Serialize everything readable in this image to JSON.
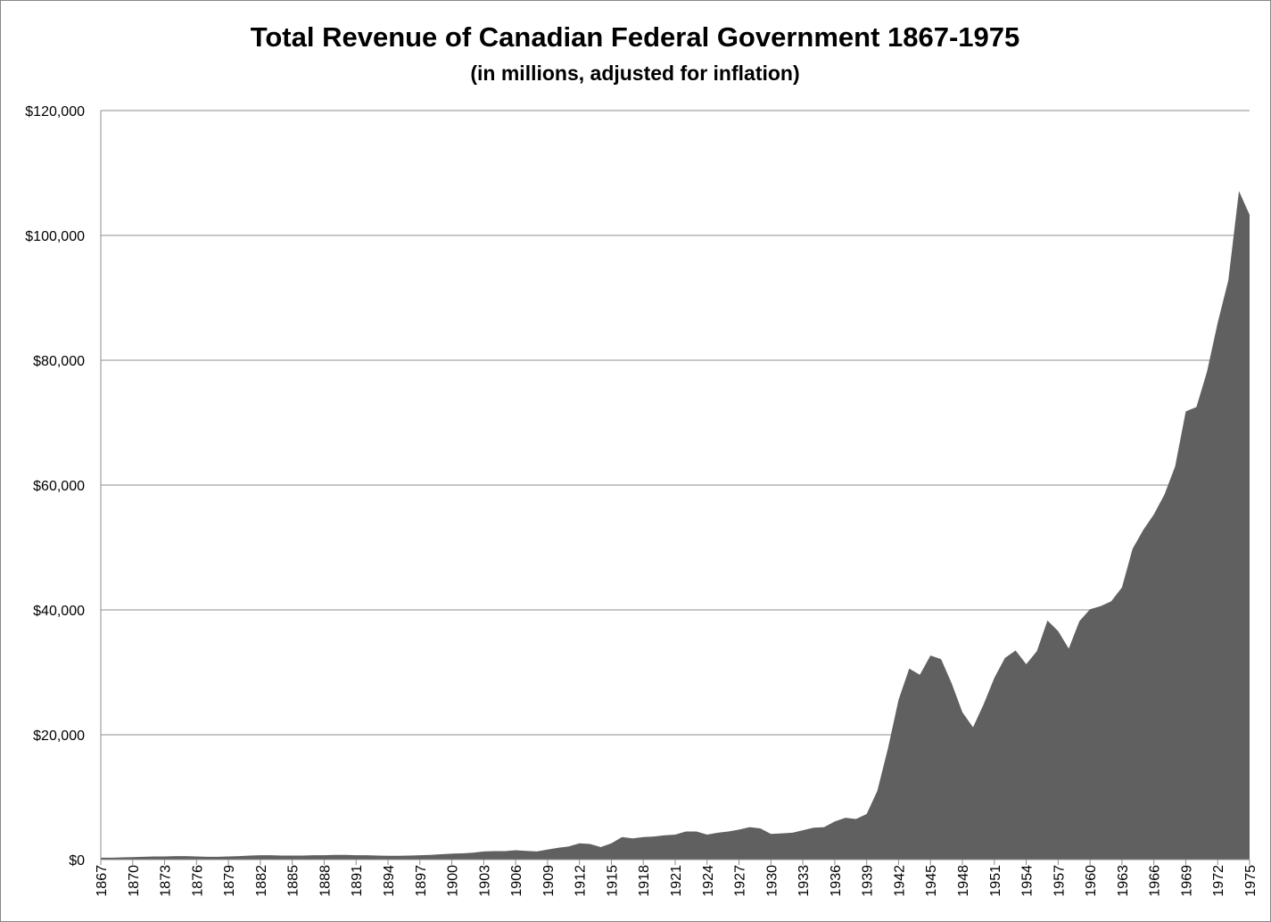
{
  "chart_data": {
    "type": "area",
    "title": "Total Revenue of Canadian Federal Government 1867-1975",
    "subtitle": "(in millions, adjusted for inflation)",
    "color": "#606060",
    "grid": true,
    "x": [
      1867,
      1868,
      1869,
      1870,
      1871,
      1872,
      1873,
      1874,
      1875,
      1876,
      1877,
      1878,
      1879,
      1880,
      1881,
      1882,
      1883,
      1884,
      1885,
      1886,
      1887,
      1888,
      1889,
      1890,
      1891,
      1892,
      1893,
      1894,
      1895,
      1896,
      1897,
      1898,
      1899,
      1900,
      1901,
      1902,
      1903,
      1904,
      1905,
      1906,
      1907,
      1908,
      1909,
      1910,
      1911,
      1912,
      1913,
      1914,
      1915,
      1916,
      1917,
      1918,
      1919,
      1920,
      1921,
      1922,
      1923,
      1924,
      1925,
      1926,
      1927,
      1928,
      1929,
      1930,
      1931,
      1932,
      1933,
      1934,
      1935,
      1936,
      1937,
      1938,
      1939,
      1940,
      1941,
      1942,
      1943,
      1944,
      1945,
      1946,
      1947,
      1948,
      1949,
      1950,
      1951,
      1952,
      1953,
      1954,
      1955,
      1956,
      1957,
      1958,
      1959,
      1960,
      1961,
      1962,
      1963,
      1964,
      1965,
      1966,
      1967,
      1968,
      1969,
      1970,
      1971,
      1972,
      1973,
      1974,
      1975
    ],
    "values": [
      300,
      300,
      350,
      400,
      450,
      500,
      500,
      550,
      550,
      500,
      450,
      450,
      500,
      550,
      650,
      700,
      700,
      650,
      650,
      650,
      700,
      700,
      750,
      750,
      700,
      700,
      650,
      600,
      600,
      650,
      700,
      750,
      850,
      950,
      1000,
      1100,
      1300,
      1350,
      1350,
      1500,
      1400,
      1300,
      1600,
      1900,
      2100,
      2600,
      2500,
      2000,
      2600,
      3600,
      3400,
      3600,
      3700,
      3900,
      4000,
      4500,
      4500,
      4000,
      4300,
      4500,
      4800,
      5200,
      5000,
      4100,
      4200,
      4300,
      4700,
      5100,
      5200,
      6100,
      6700,
      6500,
      7300,
      11000,
      17800,
      25600,
      30600,
      29600,
      32700,
      32100,
      28200,
      23600,
      21200,
      24900,
      29100,
      32300,
      33500,
      31300,
      33400,
      38300,
      36600,
      33800,
      38200,
      40100,
      40600,
      41400,
      43600,
      49800,
      52800,
      55300,
      58500,
      63000,
      71800,
      72500,
      78200,
      86000,
      92800,
      107100,
      103300
    ],
    "xlim": [
      1867,
      1975
    ],
    "xticks": [
      1867,
      1870,
      1873,
      1876,
      1879,
      1882,
      1885,
      1888,
      1891,
      1894,
      1897,
      1900,
      1903,
      1906,
      1909,
      1912,
      1915,
      1918,
      1921,
      1924,
      1927,
      1930,
      1933,
      1936,
      1939,
      1942,
      1945,
      1948,
      1951,
      1954,
      1957,
      1960,
      1963,
      1966,
      1969,
      1972,
      1975
    ],
    "ylim": [
      0,
      120000
    ],
    "yticks": [
      {
        "value": 0,
        "label": "$0"
      },
      {
        "value": 20000,
        "label": "$20,000"
      },
      {
        "value": 40000,
        "label": "$40,000"
      },
      {
        "value": 60000,
        "label": "$60,000"
      },
      {
        "value": 80000,
        "label": "$80,000"
      },
      {
        "value": 100000,
        "label": "$100,000"
      },
      {
        "value": 120000,
        "label": "$120,000"
      }
    ]
  }
}
